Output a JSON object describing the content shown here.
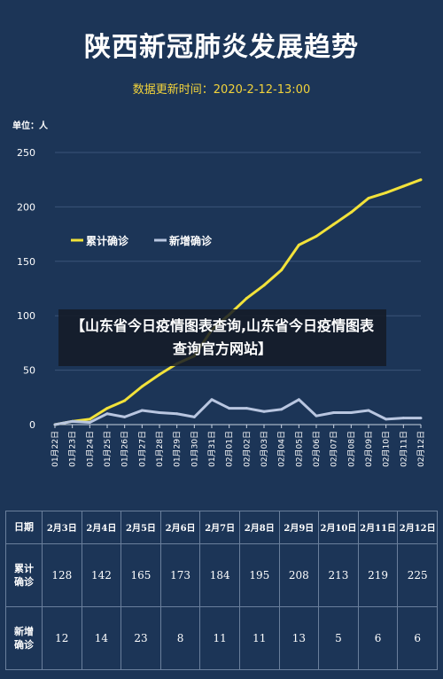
{
  "header": {
    "title": "陕西新冠肺炎发展趋势",
    "update_time": "数据更新时间：2020-2-12-13:00"
  },
  "overlay_caption": "【山东省今日疫情图表查询,山东省今日疫情图表查询官方网站】",
  "colors": {
    "background": "#1c3557",
    "cumulative": "#f2e23a",
    "new": "#b9c6e0",
    "accent_text": "#f2d33b"
  },
  "chart_data": {
    "type": "line",
    "unit_label": "单位：人",
    "x": [
      "01月22日",
      "01月23日",
      "01月24日",
      "01月25日",
      "01月26日",
      "01月27日",
      "01月28日",
      "01月29日",
      "01月30日",
      "01月31日",
      "02月01日",
      "02月02日",
      "02月03日",
      "02月04日",
      "02月05日",
      "02月06日",
      "02月07日",
      "02月08日",
      "02月09日",
      "02月10日",
      "02月11日",
      "02月12日"
    ],
    "series": [
      {
        "name": "累计确诊",
        "color": "#f2e23a",
        "values": [
          0,
          3,
          5,
          15,
          22,
          35,
          46,
          56,
          63,
          87,
          101,
          116,
          128,
          142,
          165,
          173,
          184,
          195,
          208,
          213,
          219,
          225
        ]
      },
      {
        "name": "新增确诊",
        "color": "#b9c6e0",
        "values": [
          0,
          3,
          2,
          10,
          7,
          13,
          11,
          10,
          7,
          23,
          15,
          15,
          12,
          14,
          23,
          8,
          11,
          11,
          13,
          5,
          6,
          6
        ]
      }
    ],
    "yticks": [
      0,
      50,
      100,
      150,
      200,
      250
    ],
    "ylim": [
      0,
      250
    ],
    "legend_position": "upper-left",
    "grid": "horizontal"
  },
  "table": {
    "row_labels": [
      "日期",
      "累计确诊",
      "新增确诊"
    ],
    "dates": [
      "2月3日",
      "2月4日",
      "2月5日",
      "2月6日",
      "2月7日",
      "2月8日",
      "2月9日",
      "2月10日",
      "2月11日",
      "2月12日"
    ],
    "cumulative": [
      "128",
      "142",
      "165",
      "173",
      "184",
      "195",
      "208",
      "213",
      "219",
      "225"
    ],
    "new": [
      "12",
      "14",
      "23",
      "8",
      "11",
      "11",
      "13",
      "5",
      "6",
      "6"
    ]
  }
}
